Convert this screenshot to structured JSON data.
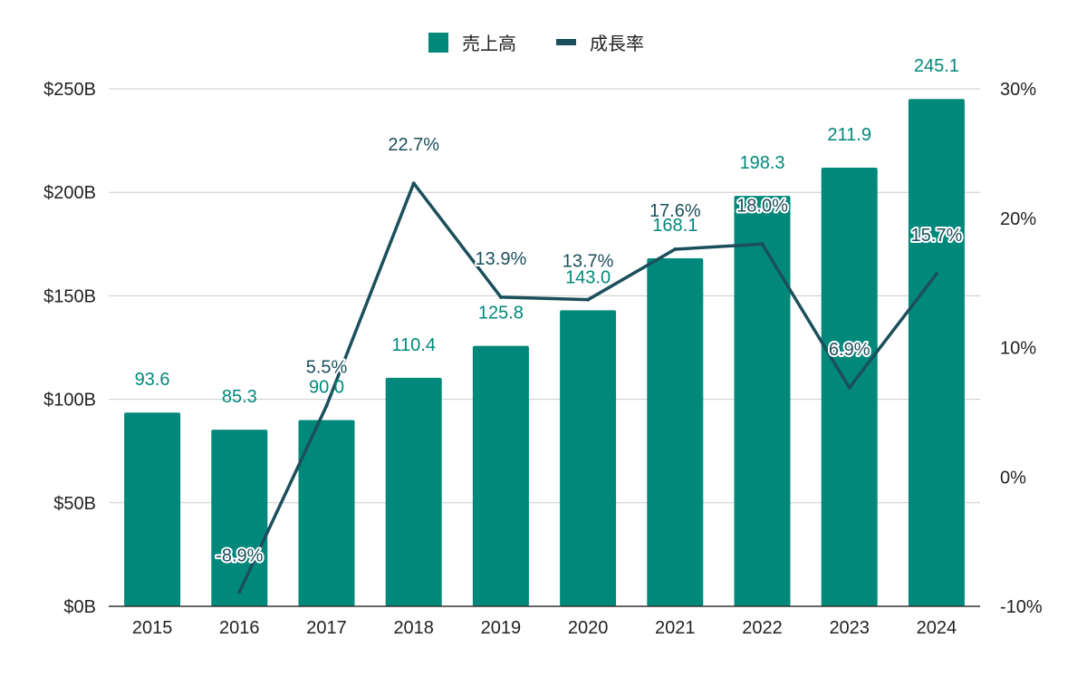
{
  "chart_data": {
    "type": "bar",
    "categories": [
      "2015",
      "2016",
      "2017",
      "2018",
      "2019",
      "2020",
      "2021",
      "2022",
      "2023",
      "2024"
    ],
    "series": [
      {
        "name": "売上高",
        "type": "bar",
        "axis": "left",
        "color": "#00897B",
        "values": [
          93.6,
          85.3,
          90.0,
          110.4,
          125.8,
          143.0,
          168.1,
          198.3,
          211.9,
          245.1
        ],
        "labels": [
          "93.6",
          "85.3",
          "90.0",
          "110.4",
          "125.8",
          "143.0",
          "168.1",
          "198.3",
          "211.9",
          "245.1"
        ]
      },
      {
        "name": "成長率",
        "type": "line",
        "axis": "right",
        "color": "#1B4F5C",
        "values": [
          null,
          -8.9,
          5.5,
          22.7,
          13.9,
          13.7,
          17.6,
          18.0,
          6.9,
          15.7
        ],
        "labels": [
          "",
          "-8.9%",
          "5.5%",
          "22.7%",
          "13.9%",
          "13.7%",
          "17.6%",
          "18.0%",
          "6.9%",
          "15.7%"
        ]
      }
    ],
    "y_left": {
      "ylim": [
        0,
        250
      ],
      "ticks": [
        0,
        50,
        100,
        150,
        200,
        250
      ],
      "tick_labels": [
        "$0B",
        "$50B",
        "$100B",
        "$150B",
        "$200B",
        "$250B"
      ]
    },
    "y_right": {
      "ylim": [
        -10,
        30
      ],
      "ticks": [
        -10,
        0,
        10,
        20,
        30
      ],
      "tick_labels": [
        "-10%",
        "0%",
        "10%",
        "20%",
        "30%"
      ]
    },
    "grid": true,
    "legend": "top-center",
    "title": "",
    "xlabel": "",
    "ylabel": ""
  }
}
